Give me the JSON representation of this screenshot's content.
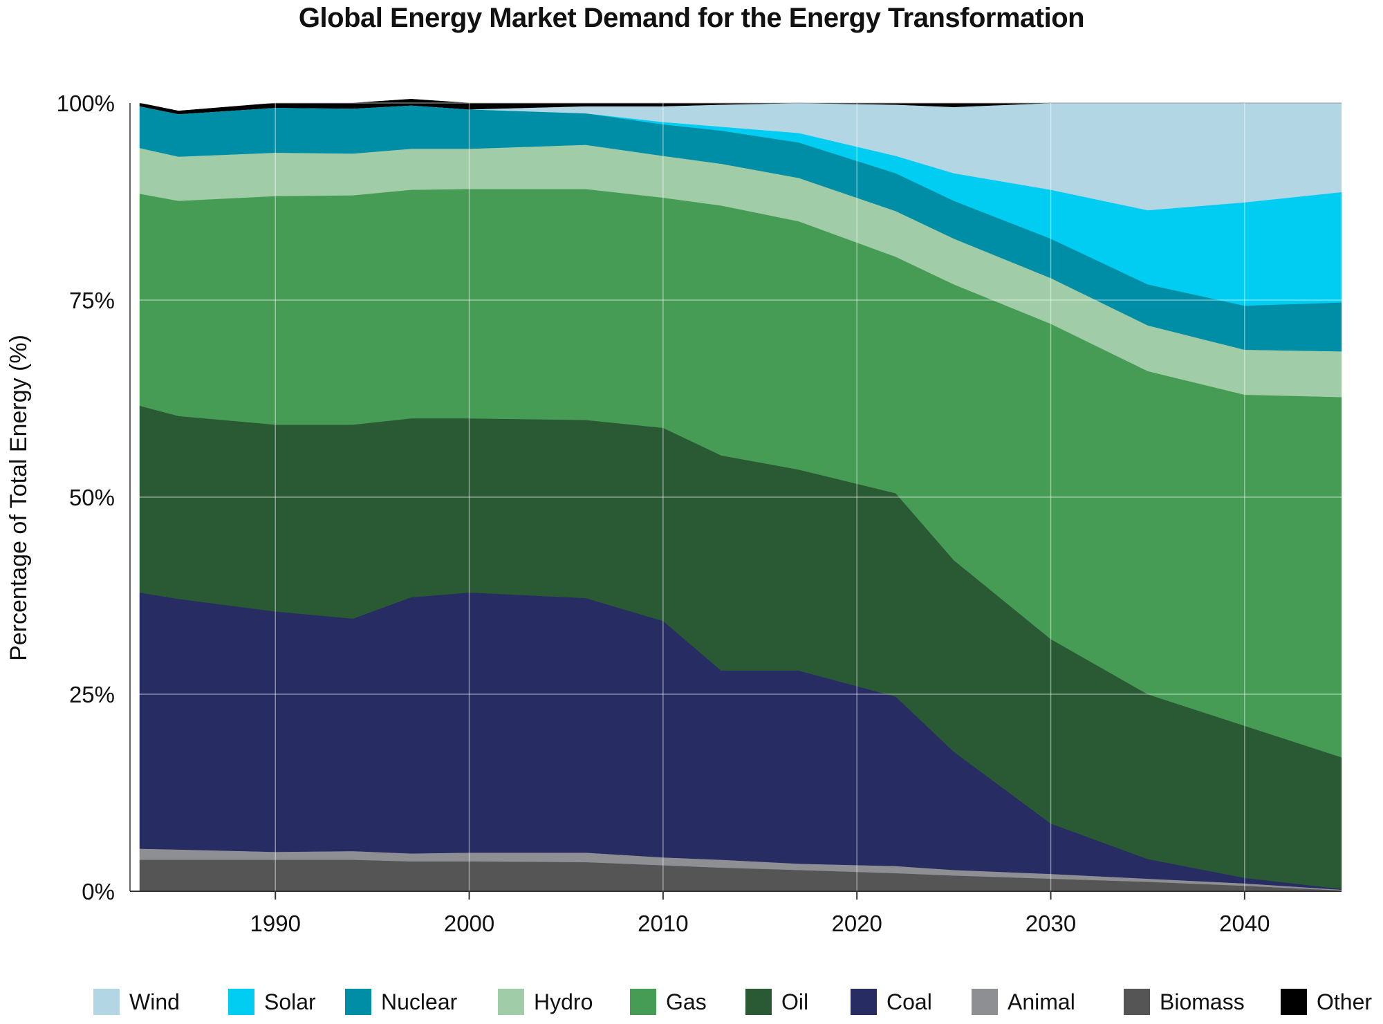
{
  "chart_data": {
    "type": "area",
    "stacked": true,
    "normalized_percent": true,
    "title": "Global Energy Market Demand for the Energy Transformation",
    "xlabel": "",
    "ylabel": "Percentage of Total Energy (%)",
    "xlim": [
      1982.5,
      2045
    ],
    "ylim": [
      0,
      100
    ],
    "x_ticks": [
      "1990",
      "2000",
      "2010",
      "2020",
      "2030",
      "2040"
    ],
    "y_ticks": [
      "0%",
      "25%",
      "50%",
      "75%",
      "100%"
    ],
    "grid": true,
    "legend_position": "bottom",
    "legend": [
      "Wind",
      "Solar",
      "Nuclear",
      "Hydro",
      "Gas",
      "Oil",
      "Coal",
      "Animal",
      "Biomass",
      "Other"
    ],
    "colors": {
      "Wind": "#b2d6e4",
      "Solar": "#00cdf1",
      "Nuclear": "#008ea6",
      "Hydro": "#a0cda7",
      "Gas": "#479c55",
      "Oil": "#2a5a33",
      "Coal": "#272c63",
      "Animal": "#8e8f93",
      "Biomass": "#555555",
      "Other": "#000000"
    },
    "x": [
      1983,
      1985,
      1990,
      1994,
      1997,
      2000,
      2006,
      2010,
      2013,
      2017,
      2022,
      2025,
      2030,
      2035,
      2040,
      2045
    ],
    "series_stack_order": [
      "Biomass",
      "Animal",
      "Coal",
      "Oil",
      "Gas",
      "Hydro",
      "Nuclear",
      "Solar",
      "Wind",
      "Other"
    ],
    "series": [
      {
        "name": "Biomass",
        "values": [
          4.0,
          4.0,
          4.0,
          4.0,
          3.8,
          3.8,
          3.7,
          3.3,
          3.0,
          2.7,
          2.3,
          2.0,
          1.6,
          1.2,
          0.7,
          0.1
        ]
      },
      {
        "name": "Animal",
        "values": [
          1.4,
          1.3,
          1.0,
          1.1,
          1.0,
          1.1,
          1.2,
          1.0,
          1.0,
          0.8,
          0.9,
          0.7,
          0.6,
          0.4,
          0.3,
          0.1
        ]
      },
      {
        "name": "Coal",
        "values": [
          32.5,
          31.8,
          30.5,
          29.5,
          32.5,
          33.0,
          32.3,
          30.0,
          24.0,
          24.5,
          21.5,
          15.0,
          6.4,
          2.5,
          0.7,
          0.1
        ]
      },
      {
        "name": "Oil",
        "values": [
          23.7,
          23.2,
          23.7,
          24.6,
          22.7,
          22.1,
          22.6,
          24.5,
          27.3,
          25.5,
          25.8,
          24.3,
          23.4,
          20.9,
          19.3,
          16.7
        ]
      },
      {
        "name": "Gas",
        "values": [
          26.9,
          27.3,
          29.0,
          29.1,
          29.0,
          29.1,
          29.3,
          29.2,
          31.7,
          31.5,
          30.0,
          35.0,
          40.0,
          41.0,
          42.0,
          45.7
        ]
      },
      {
        "name": "Hydro",
        "values": [
          5.8,
          5.6,
          5.5,
          5.3,
          5.2,
          5.1,
          5.6,
          5.3,
          5.3,
          5.5,
          5.8,
          5.8,
          5.8,
          5.8,
          5.7,
          5.8
        ]
      },
      {
        "name": "Nuclear",
        "values": [
          5.3,
          5.4,
          5.7,
          5.7,
          5.5,
          5.0,
          4.0,
          4.0,
          4.2,
          4.5,
          4.8,
          4.8,
          5.0,
          5.2,
          5.6,
          6.2
        ]
      },
      {
        "name": "Solar",
        "values": [
          0,
          0,
          0,
          0,
          0,
          0,
          0,
          0.3,
          0.5,
          1.2,
          2.2,
          3.5,
          6.2,
          9.4,
          13.1,
          14.0
        ]
      },
      {
        "name": "Wind",
        "values": [
          0,
          0,
          0,
          0,
          0,
          0,
          0.9,
          2.0,
          2.8,
          3.8,
          6.5,
          8.4,
          11.0,
          13.6,
          12.6,
          11.3
        ]
      },
      {
        "name": "Other",
        "values": [
          0.4,
          0.4,
          0.6,
          0.7,
          0.8,
          0.8,
          0.4,
          0.4,
          0.2,
          0.0,
          0.2,
          0.5,
          0,
          0,
          0,
          0
        ]
      }
    ]
  }
}
